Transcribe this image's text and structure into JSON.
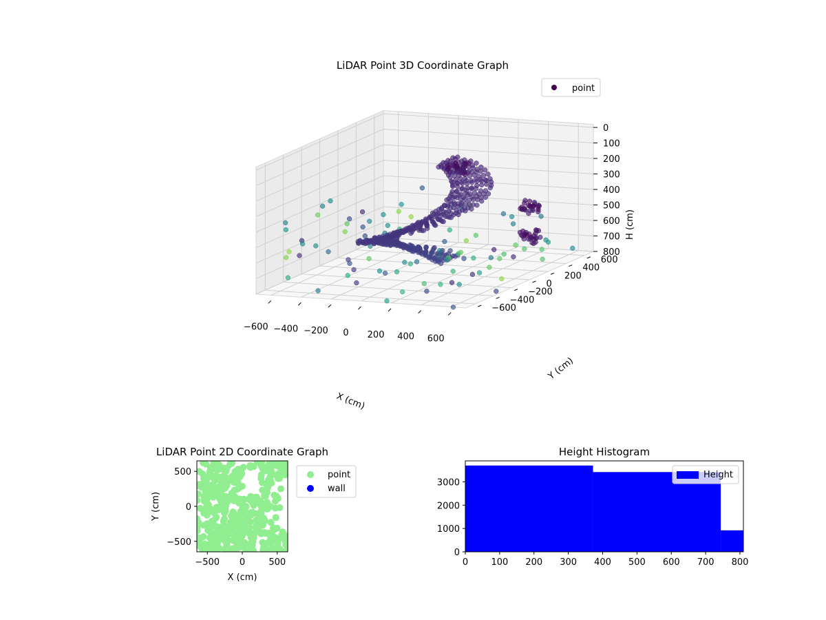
{
  "chart_data": [
    {
      "type": "scatter",
      "projection": "3d",
      "title": "LiDAR Point 3D Coordinate Graph",
      "xlabel": "X (cm)",
      "ylabel": "Y (cm)",
      "zlabel": "H (cm)",
      "xlim": [
        -700,
        700
      ],
      "ylim": [
        -700,
        700
      ],
      "zlim": [
        800,
        0
      ],
      "z_inverted": true,
      "xticks": [
        -600,
        -400,
        -200,
        0,
        200,
        400,
        600
      ],
      "yticks": [
        -600,
        -400,
        -200,
        0,
        200,
        400,
        600
      ],
      "zticks": [
        0,
        100,
        200,
        300,
        400,
        500,
        600,
        700,
        800
      ],
      "colormap": "viridis",
      "grid": true,
      "legend": {
        "position": "top-right",
        "entries": [
          "point"
        ]
      },
      "series": [
        {
          "name": "point",
          "color": "#440154",
          "shape": "spiral ramp",
          "ramp": {
            "r_inner": 160,
            "r_outer": 380,
            "angle_start_deg": 0,
            "angle_end_deg": 360,
            "h_start": 780,
            "h_end": 150
          },
          "clusters": [
            {
              "x": 180,
              "y": 80,
              "h": 130
            },
            {
              "x": 520,
              "y": 300,
              "h": 420
            },
            {
              "x": 620,
              "y": 150,
              "h": 560
            }
          ]
        }
      ]
    },
    {
      "type": "scatter",
      "title": "LiDAR Point 2D Coordinate Graph",
      "xlabel": "X (cm)",
      "ylabel": "Y (cm)",
      "xlim": [
        -650,
        650
      ],
      "ylim": [
        -650,
        650
      ],
      "xticks": [
        -500,
        0,
        500
      ],
      "yticks": [
        -500,
        0,
        500
      ],
      "legend": {
        "position": "outside-right",
        "entries": [
          "point",
          "wall"
        ]
      },
      "series": [
        {
          "name": "point",
          "color": "#90ee90"
        },
        {
          "name": "wall",
          "color": "#0000ff"
        }
      ]
    },
    {
      "type": "bar",
      "title": "Height Histogram",
      "xlim": [
        0,
        810
      ],
      "ylim": [
        0,
        3900
      ],
      "xticks": [
        0,
        100,
        200,
        300,
        400,
        500,
        600,
        700,
        800
      ],
      "yticks": [
        0,
        1000,
        2000,
        3000
      ],
      "legend": {
        "position": "top-right",
        "entries": [
          "Height"
        ]
      },
      "series": [
        {
          "name": "Height",
          "color": "#0000ff",
          "bins": [
            {
              "x0": 0,
              "x1": 372,
              "count": 3700
            },
            {
              "x0": 372,
              "x1": 744,
              "count": 3420
            },
            {
              "x0": 744,
              "x1": 810,
              "count": 920
            }
          ]
        }
      ]
    }
  ]
}
